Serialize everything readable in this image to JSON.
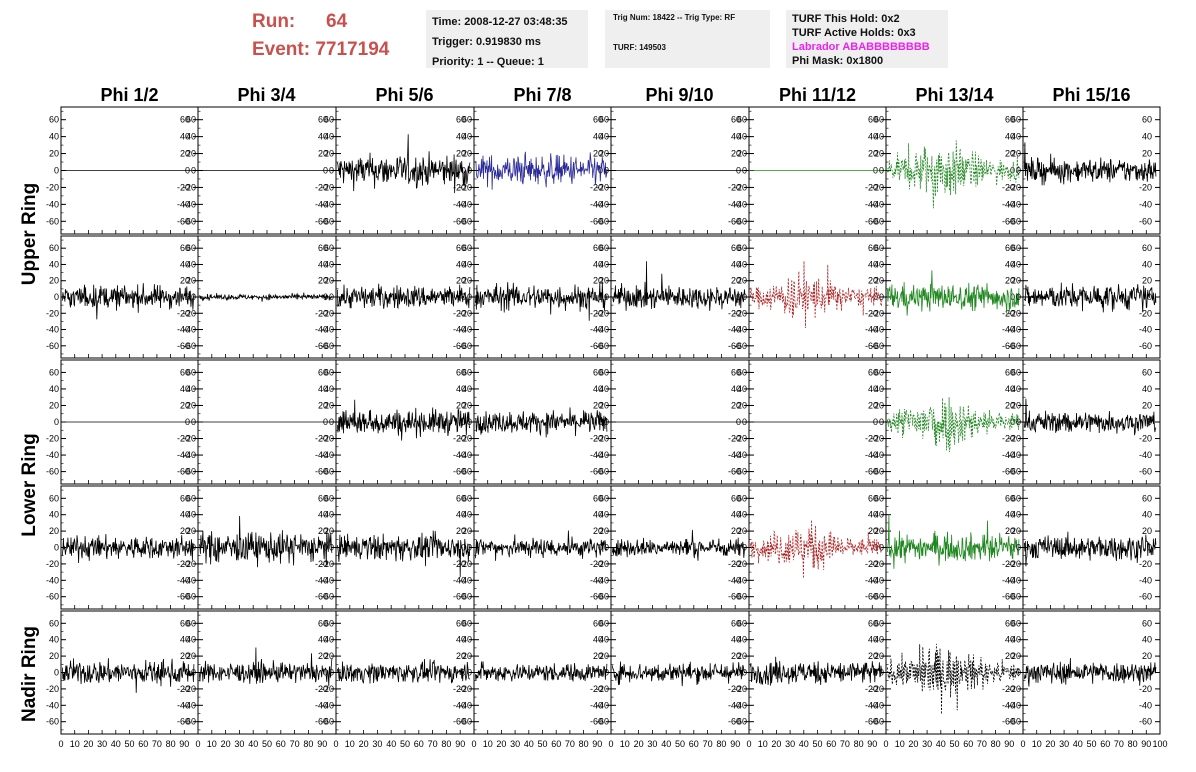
{
  "header": {
    "run_label": "Run:",
    "run_value": "64",
    "event_label": "Event:",
    "event_value": "7717194"
  },
  "info_box_1": {
    "time": "Time: 2008-12-27 03:48:35",
    "trigger": "Trigger: 0.919830 ms",
    "priority": "Priority: 1 -- Queue: 1"
  },
  "info_box_2": {
    "trig": "Trig Num: 18422 -- Trig Type: RF",
    "turf": "TURF: 149503"
  },
  "info_box_3": {
    "turf_hold": "TURF This Hold: 0x2",
    "turf_active": "TURF Active Holds: 0x3",
    "labrador": "Labrador ABABBBBBBBB",
    "phi_mask": "Phi Mask: 0x1800",
    "labrador_color": "#ee22ee"
  },
  "chart_data": {
    "type": "line",
    "columns": [
      "Phi 1/2",
      "Phi 3/4",
      "Phi 5/6",
      "Phi 7/8",
      "Phi 9/10",
      "Phi 11/12",
      "Phi 13/14",
      "Phi 15/16"
    ],
    "ring_labels": [
      "Upper Ring",
      "Lower Ring",
      "Nadir Ring"
    ],
    "y_ticks": [
      60,
      40,
      20,
      0,
      -20,
      -40,
      -60
    ],
    "ylim": [
      -75,
      75
    ],
    "x_ticks": [
      0,
      10,
      20,
      30,
      40,
      50,
      60,
      70,
      80,
      90,
      100
    ],
    "xlim": [
      0,
      100
    ],
    "colors": {
      "normal": "#000000",
      "blue": "#2a2a9a",
      "red": "#b02020",
      "green": "#208820"
    },
    "rows": [
      [
        {
          "style": "flat",
          "color": "normal",
          "amp": 0
        },
        {
          "style": "flat",
          "color": "normal",
          "amp": 0
        },
        {
          "style": "noise",
          "color": "normal",
          "amp": 17
        },
        {
          "style": "noise",
          "color": "blue",
          "amp": 16
        },
        {
          "style": "flat",
          "color": "normal",
          "amp": 0
        },
        {
          "style": "flat",
          "color": "green",
          "amp": 0
        },
        {
          "style": "dashed",
          "color": "green",
          "amp": 24
        },
        {
          "style": "noise",
          "color": "normal",
          "amp": 13
        }
      ],
      [
        {
          "style": "noise",
          "color": "normal",
          "amp": 13
        },
        {
          "style": "noise",
          "color": "normal",
          "amp": 3
        },
        {
          "style": "noise",
          "color": "normal",
          "amp": 13
        },
        {
          "style": "noise",
          "color": "normal",
          "amp": 14
        },
        {
          "style": "noise",
          "color": "normal",
          "amp": 13
        },
        {
          "style": "dashed",
          "color": "red",
          "amp": 20
        },
        {
          "style": "noise",
          "color": "green",
          "amp": 15
        },
        {
          "style": "noise",
          "color": "normal",
          "amp": 14
        }
      ],
      [
        {
          "style": "flat",
          "color": "normal",
          "amp": 0
        },
        {
          "style": "flat",
          "color": "normal",
          "amp": 0
        },
        {
          "style": "noise",
          "color": "normal",
          "amp": 14
        },
        {
          "style": "noise",
          "color": "normal",
          "amp": 12
        },
        {
          "style": "flat",
          "color": "normal",
          "amp": 0
        },
        {
          "style": "flat",
          "color": "normal",
          "amp": 0
        },
        {
          "style": "dashed",
          "color": "green",
          "amp": 24
        },
        {
          "style": "noise",
          "color": "normal",
          "amp": 12
        }
      ],
      [
        {
          "style": "noise",
          "color": "normal",
          "amp": 13
        },
        {
          "style": "noise",
          "color": "normal",
          "amp": 17
        },
        {
          "style": "noise",
          "color": "normal",
          "amp": 14
        },
        {
          "style": "noise",
          "color": "normal",
          "amp": 11
        },
        {
          "style": "noise",
          "color": "normal",
          "amp": 10
        },
        {
          "style": "dashed",
          "color": "red",
          "amp": 20
        },
        {
          "style": "noise",
          "color": "green",
          "amp": 15
        },
        {
          "style": "noise",
          "color": "normal",
          "amp": 13
        }
      ],
      [
        {
          "style": "noise",
          "color": "normal",
          "amp": 13
        },
        {
          "style": "noise",
          "color": "normal",
          "amp": 11
        },
        {
          "style": "noise",
          "color": "normal",
          "amp": 11
        },
        {
          "style": "noise",
          "color": "normal",
          "amp": 10
        },
        {
          "style": "noise",
          "color": "normal",
          "amp": 11
        },
        {
          "style": "noise",
          "color": "normal",
          "amp": 13
        },
        {
          "style": "dashed",
          "color": "normal",
          "amp": 22
        },
        {
          "style": "noise",
          "color": "normal",
          "amp": 12
        }
      ]
    ]
  }
}
